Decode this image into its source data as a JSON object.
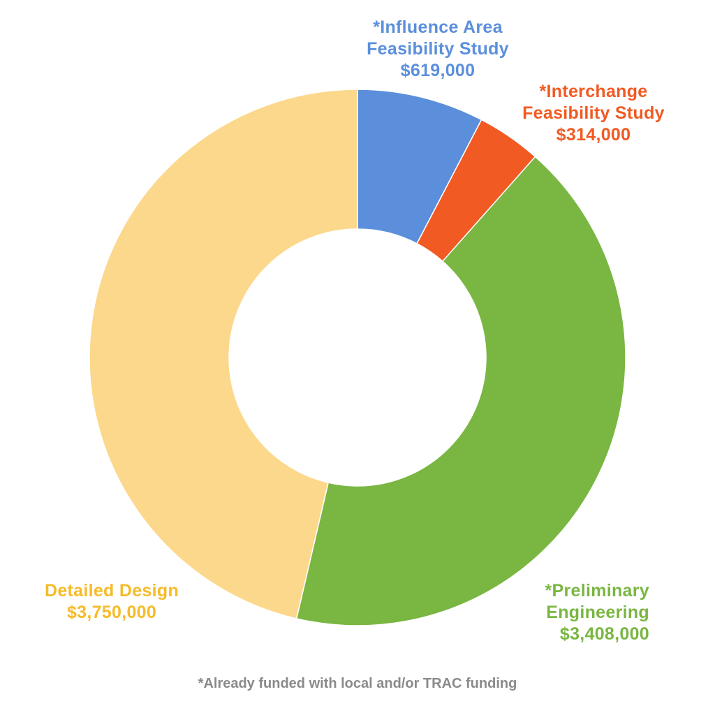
{
  "chart_data": {
    "type": "pie",
    "donut": true,
    "legend": "none",
    "slices": [
      {
        "label_lines": [
          "*Influence Area",
          "Feasibility Study"
        ],
        "value_label": "$619,000",
        "value": 619000,
        "color": "#5b8fdc",
        "label_color": "#5b8fdc"
      },
      {
        "label_lines": [
          "*Interchange",
          "Feasibility Study"
        ],
        "value_label": "$314,000",
        "value": 314000,
        "color": "#f15a22",
        "label_color": "#f15a22"
      },
      {
        "label_lines": [
          "*Preliminary",
          "Engineering"
        ],
        "value_label": "$3,408,000",
        "value": 3408000,
        "color": "#7ab642",
        "label_color": "#7ab642"
      },
      {
        "label_lines": [
          "Detailed Design"
        ],
        "value_label": "$3,750,000",
        "value": 3750000,
        "color": "#fcd88c",
        "label_color": "#f5bb2a"
      }
    ],
    "footnote": "*Already funded with local and/or TRAC funding"
  }
}
